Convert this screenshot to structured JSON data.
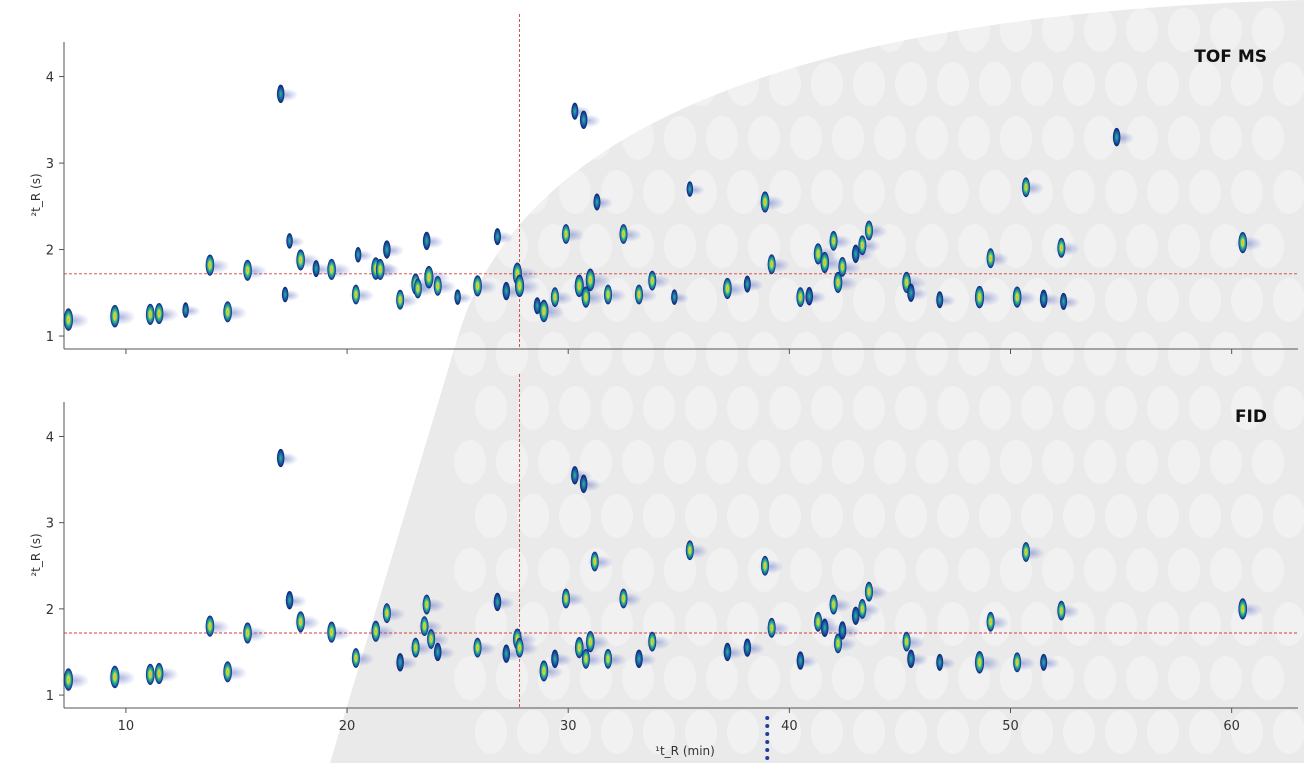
{
  "figure": {
    "background": "#ffffff",
    "photo_tint": "#8a8d90"
  },
  "chart_data": [
    {
      "type": "scatter",
      "subtype": "gcxgc-contour",
      "panel_label": "TOF MS",
      "xlabel": "",
      "ylabel": "²t_R (s)",
      "xlim": [
        7.2,
        63
      ],
      "ylim": [
        0.85,
        4.4
      ],
      "y_ticks": [
        1,
        2,
        3,
        4
      ],
      "x_tick_labels_shown": false,
      "crosshair": {
        "x": 27.8,
        "y": 1.72
      },
      "colormap": [
        "#0b1f6e",
        "#1e6fb3",
        "#2fbf71",
        "#c8e04a",
        "#f0a030"
      ],
      "points": [
        [
          7.4,
          1.19,
          0.9
        ],
        [
          9.5,
          1.23,
          0.9
        ],
        [
          11.1,
          1.25,
          0.8
        ],
        [
          11.5,
          1.26,
          0.8
        ],
        [
          12.7,
          1.3,
          0.4
        ],
        [
          14.6,
          1.28,
          0.8
        ],
        [
          13.8,
          1.82,
          0.8
        ],
        [
          15.5,
          1.76,
          0.8
        ],
        [
          17.0,
          3.8,
          0.6
        ],
        [
          17.2,
          1.48,
          0.4
        ],
        [
          17.4,
          2.1,
          0.4
        ],
        [
          17.9,
          1.88,
          0.8
        ],
        [
          18.6,
          1.78,
          0.5
        ],
        [
          19.3,
          1.77,
          0.8
        ],
        [
          20.4,
          1.48,
          0.7
        ],
        [
          20.5,
          1.94,
          0.4
        ],
        [
          21.3,
          1.78,
          0.9
        ],
        [
          21.5,
          1.77,
          0.8
        ],
        [
          21.8,
          2.0,
          0.6
        ],
        [
          22.4,
          1.42,
          0.7
        ],
        [
          23.1,
          1.6,
          0.8
        ],
        [
          23.2,
          1.55,
          0.7
        ],
        [
          23.6,
          2.1,
          0.6
        ],
        [
          23.7,
          1.68,
          0.9
        ],
        [
          24.1,
          1.58,
          0.7
        ],
        [
          25.0,
          1.45,
          0.4
        ],
        [
          25.9,
          1.58,
          0.8
        ],
        [
          26.8,
          2.15,
          0.5
        ],
        [
          27.2,
          1.52,
          0.6
        ],
        [
          27.7,
          1.72,
          0.9
        ],
        [
          27.8,
          1.58,
          0.9
        ],
        [
          28.6,
          1.35,
          0.5
        ],
        [
          28.9,
          1.29,
          0.9
        ],
        [
          29.4,
          1.45,
          0.7
        ],
        [
          29.9,
          2.18,
          0.7
        ],
        [
          30.3,
          3.6,
          0.5
        ],
        [
          30.7,
          3.5,
          0.6
        ],
        [
          30.5,
          1.58,
          0.9
        ],
        [
          30.8,
          1.45,
          0.8
        ],
        [
          31.0,
          1.65,
          0.9
        ],
        [
          31.3,
          2.55,
          0.5
        ],
        [
          31.8,
          1.48,
          0.7
        ],
        [
          32.5,
          2.18,
          0.7
        ],
        [
          33.2,
          1.48,
          0.7
        ],
        [
          33.8,
          1.64,
          0.7
        ],
        [
          34.8,
          1.45,
          0.4
        ],
        [
          35.5,
          2.7,
          0.4
        ],
        [
          37.2,
          1.55,
          0.8
        ],
        [
          38.1,
          1.6,
          0.5
        ],
        [
          38.9,
          2.55,
          0.8
        ],
        [
          39.2,
          1.83,
          0.7
        ],
        [
          40.5,
          1.45,
          0.7
        ],
        [
          40.9,
          1.46,
          0.6
        ],
        [
          41.3,
          1.95,
          0.8
        ],
        [
          41.6,
          1.85,
          0.8
        ],
        [
          42.0,
          2.1,
          0.7
        ],
        [
          42.2,
          1.62,
          0.8
        ],
        [
          42.4,
          1.8,
          0.7
        ],
        [
          43.0,
          1.95,
          0.6
        ],
        [
          43.3,
          2.05,
          0.7
        ],
        [
          43.6,
          2.22,
          0.7
        ],
        [
          45.3,
          1.62,
          0.8
        ],
        [
          45.5,
          1.5,
          0.6
        ],
        [
          46.8,
          1.42,
          0.5
        ],
        [
          48.6,
          1.45,
          0.9
        ],
        [
          49.1,
          1.9,
          0.7
        ],
        [
          50.3,
          1.45,
          0.8
        ],
        [
          50.7,
          2.72,
          0.7
        ],
        [
          51.5,
          1.43,
          0.6
        ],
        [
          52.4,
          1.4,
          0.5
        ],
        [
          52.3,
          2.02,
          0.7
        ],
        [
          54.8,
          3.3,
          0.6
        ],
        [
          60.5,
          2.08,
          0.8
        ]
      ]
    },
    {
      "type": "scatter",
      "subtype": "gcxgc-contour",
      "panel_label": "FID",
      "xlabel": "¹t_R (min)",
      "ylabel": "²t_R (s)",
      "xlim": [
        7.2,
        63
      ],
      "ylim": [
        0.85,
        4.4
      ],
      "x_ticks": [
        10,
        20,
        30,
        40,
        50,
        60
      ],
      "y_ticks": [
        1,
        2,
        3,
        4
      ],
      "crosshair": {
        "x": 27.8,
        "y": 1.72
      },
      "marker": {
        "x": 39,
        "style": "dotted",
        "color": "#1e3c9c"
      },
      "points": [
        [
          7.4,
          1.18,
          0.9
        ],
        [
          9.5,
          1.21,
          0.9
        ],
        [
          11.1,
          1.24,
          0.8
        ],
        [
          11.5,
          1.25,
          0.8
        ],
        [
          14.6,
          1.27,
          0.8
        ],
        [
          13.8,
          1.8,
          0.8
        ],
        [
          15.5,
          1.72,
          0.8
        ],
        [
          17.0,
          3.75,
          0.6
        ],
        [
          17.4,
          2.1,
          0.6
        ],
        [
          17.9,
          1.85,
          0.8
        ],
        [
          19.3,
          1.73,
          0.8
        ],
        [
          20.4,
          1.43,
          0.7
        ],
        [
          21.3,
          1.74,
          0.8
        ],
        [
          21.8,
          1.95,
          0.7
        ],
        [
          22.4,
          1.38,
          0.6
        ],
        [
          23.1,
          1.55,
          0.7
        ],
        [
          23.5,
          1.8,
          0.7
        ],
        [
          23.6,
          2.05,
          0.7
        ],
        [
          23.8,
          1.65,
          0.7
        ],
        [
          24.1,
          1.5,
          0.6
        ],
        [
          25.9,
          1.55,
          0.7
        ],
        [
          26.8,
          2.08,
          0.6
        ],
        [
          27.2,
          1.48,
          0.6
        ],
        [
          27.7,
          1.65,
          0.8
        ],
        [
          27.8,
          1.55,
          0.7
        ],
        [
          28.9,
          1.28,
          0.8
        ],
        [
          29.4,
          1.42,
          0.6
        ],
        [
          29.9,
          2.12,
          0.7
        ],
        [
          30.3,
          3.55,
          0.6
        ],
        [
          30.7,
          3.45,
          0.6
        ],
        [
          30.5,
          1.55,
          0.8
        ],
        [
          30.8,
          1.42,
          0.7
        ],
        [
          31.0,
          1.62,
          0.8
        ],
        [
          31.2,
          2.55,
          0.7
        ],
        [
          31.8,
          1.42,
          0.7
        ],
        [
          32.5,
          2.12,
          0.7
        ],
        [
          33.2,
          1.42,
          0.6
        ],
        [
          33.8,
          1.62,
          0.7
        ],
        [
          35.5,
          2.68,
          0.7
        ],
        [
          37.2,
          1.5,
          0.6
        ],
        [
          38.1,
          1.55,
          0.6
        ],
        [
          38.9,
          2.5,
          0.7
        ],
        [
          39.2,
          1.78,
          0.7
        ],
        [
          40.5,
          1.4,
          0.6
        ],
        [
          41.3,
          1.85,
          0.7
        ],
        [
          41.6,
          1.78,
          0.6
        ],
        [
          42.0,
          2.05,
          0.7
        ],
        [
          42.2,
          1.6,
          0.7
        ],
        [
          42.4,
          1.75,
          0.6
        ],
        [
          43.0,
          1.92,
          0.6
        ],
        [
          43.3,
          2.0,
          0.7
        ],
        [
          43.6,
          2.2,
          0.7
        ],
        [
          45.3,
          1.62,
          0.7
        ],
        [
          45.5,
          1.42,
          0.6
        ],
        [
          46.8,
          1.38,
          0.5
        ],
        [
          48.6,
          1.38,
          0.9
        ],
        [
          49.1,
          1.85,
          0.7
        ],
        [
          50.3,
          1.38,
          0.7
        ],
        [
          50.7,
          2.66,
          0.7
        ],
        [
          51.5,
          1.38,
          0.5
        ],
        [
          52.3,
          1.98,
          0.7
        ],
        [
          60.5,
          2.0,
          0.8
        ]
      ]
    }
  ]
}
